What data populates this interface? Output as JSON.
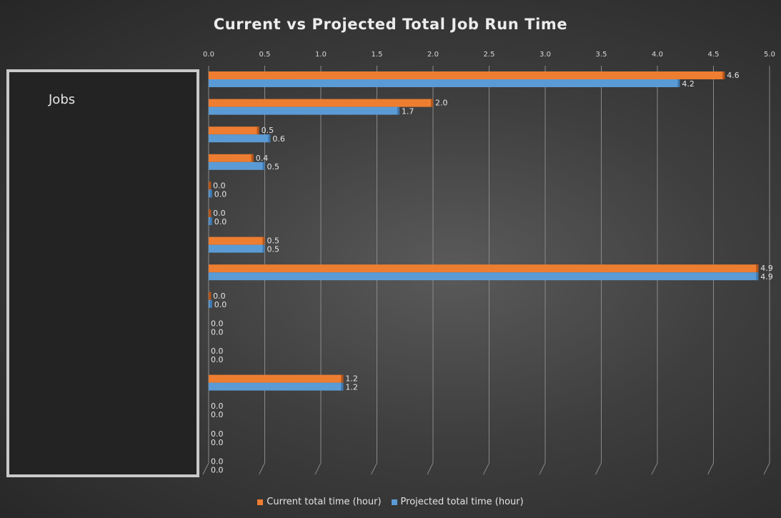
{
  "chart_data": {
    "type": "bar",
    "orientation": "horizontal",
    "title": "Current vs Projected Total Job Run Time",
    "ylabel": "Jobs",
    "xlim": [
      0,
      5
    ],
    "x_ticks": [
      "0.0",
      "0.5",
      "1.0",
      "1.5",
      "2.0",
      "2.5",
      "3.0",
      "3.5",
      "4.0",
      "4.5",
      "5.0"
    ],
    "x_axis_position": "top",
    "grid": true,
    "legend_position": "bottom",
    "categories_count": 15,
    "series": [
      {
        "name": "Current total time (hour)",
        "color": "#ed7d31",
        "values": [
          4.6,
          2.0,
          0.45,
          0.4,
          0.02,
          0.02,
          0.5,
          4.9,
          0.02,
          0,
          0,
          1.2,
          0,
          0,
          0
        ],
        "labels": [
          "4.6",
          "2.0",
          "0.5",
          "0.4",
          "0.0",
          "0.0",
          "0.5",
          "4.9",
          "0.0",
          "0.0",
          "0.0",
          "1.2",
          "0.0",
          "0.0",
          "0.0"
        ]
      },
      {
        "name": "Projected total time (hour)",
        "color": "#5b9bd5",
        "values": [
          4.2,
          1.7,
          0.55,
          0.5,
          0.03,
          0.03,
          0.5,
          4.9,
          0.03,
          0,
          0,
          1.2,
          0,
          0,
          0
        ],
        "labels": [
          "4.2",
          "1.7",
          "0.6",
          "0.5",
          "0.0",
          "0.0",
          "0.5",
          "4.9",
          "0.0",
          "0.0",
          "0.0",
          "1.2",
          "0.0",
          "0.0",
          "0.0"
        ]
      }
    ]
  }
}
